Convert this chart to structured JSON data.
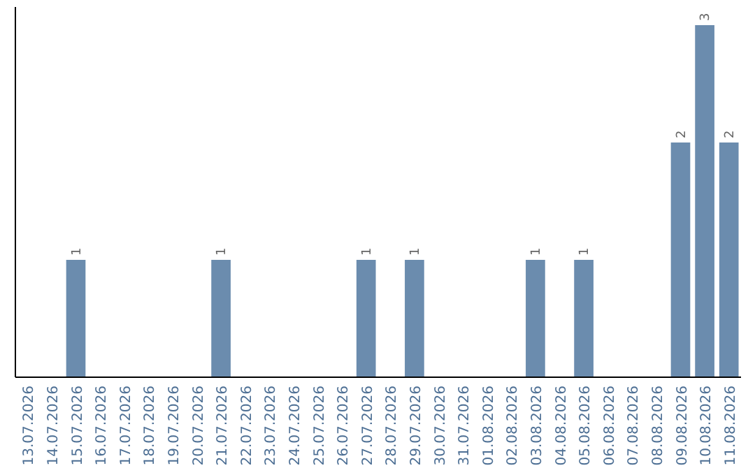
{
  "chart_data": {
    "type": "bar",
    "categories": [
      "13.07.2026",
      "14.07.2026",
      "15.07.2026",
      "16.07.2026",
      "17.07.2026",
      "18.07.2026",
      "19.07.2026",
      "20.07.2026",
      "21.07.2026",
      "22.07.2026",
      "23.07.2026",
      "24.07.2026",
      "25.07.2026",
      "26.07.2026",
      "27.07.2026",
      "28.07.2026",
      "29.07.2026",
      "30.07.2026",
      "31.07.2026",
      "01.08.2026",
      "02.08.2026",
      "03.08.2026",
      "04.08.2026",
      "05.08.2026",
      "06.08.2026",
      "07.08.2026",
      "08.08.2026",
      "09.08.2026",
      "10.08.2026",
      "11.08.2026"
    ],
    "values": [
      0,
      0,
      1,
      0,
      0,
      0,
      0,
      0,
      1,
      0,
      0,
      0,
      0,
      0,
      1,
      0,
      1,
      0,
      0,
      0,
      0,
      1,
      0,
      1,
      0,
      0,
      0,
      2,
      3,
      2
    ],
    "color": "#6b8cae",
    "value_labels": [
      null,
      null,
      "1",
      null,
      null,
      null,
      null,
      null,
      "1",
      null,
      null,
      null,
      null,
      null,
      "1",
      null,
      "1",
      null,
      null,
      null,
      null,
      "1",
      null,
      "1",
      null,
      null,
      null,
      "2",
      "3",
      "2"
    ],
    "tick_labels": "x"
  }
}
